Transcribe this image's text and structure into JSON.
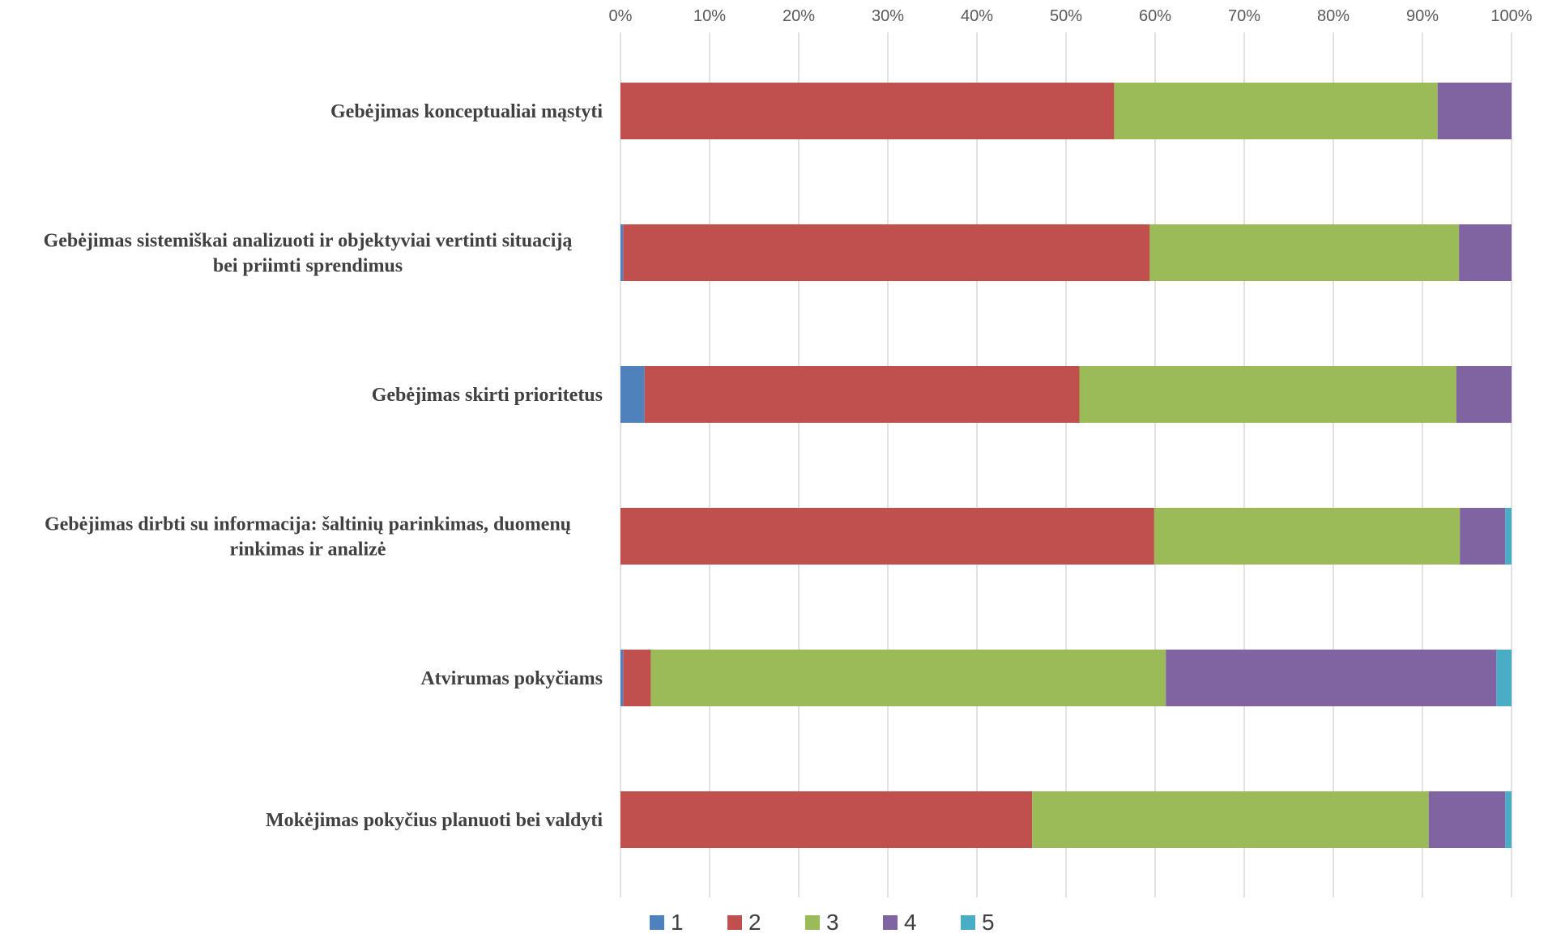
{
  "chart_data": {
    "type": "bar",
    "orientation": "horizontal",
    "stacked": "percent",
    "categories": [
      "Gebėjimas konceptualiai mąstyti",
      "Gebėjimas sistemiškai analizuoti ir objektyviai vertinti situaciją bei priimti sprendimus",
      "Gebėjimas skirti prioritetus",
      "Gebėjimas dirbti su informacija: šaltinių parinkimas, duomenų rinkimas ir analizė",
      "Atvirumas pokyčiams",
      "Mokėjimas pokyčius planuoti bei valdyti"
    ],
    "category_lines": [
      [
        "Gebėjimas konceptualiai mąstyti"
      ],
      [
        "Gebėjimas sistemiškai analizuoti ir objektyviai vertinti situaciją",
        "bei priimti sprendimus"
      ],
      [
        "Gebėjimas skirti prioritetus"
      ],
      [
        "Gebėjimas dirbti su informacija: šaltinių parinkimas, duomenų",
        "rinkimas ir analizė"
      ],
      [
        "Atvirumas pokyčiams"
      ],
      [
        "Mokėjimas pokyčius planuoti bei valdyti"
      ]
    ],
    "series": [
      {
        "name": "1",
        "color": "#4f81bd",
        "values": [
          0,
          0.3,
          2.7,
          0,
          0.3,
          0
        ]
      },
      {
        "name": "2",
        "color": "#c0504d",
        "values": [
          55.4,
          59.1,
          48.8,
          59.9,
          3.1,
          46.2
        ]
      },
      {
        "name": "3",
        "color": "#9bbb59",
        "values": [
          36.3,
          34.7,
          42.3,
          34.3,
          57.8,
          44.5
        ]
      },
      {
        "name": "4",
        "color": "#8064a2",
        "values": [
          8.3,
          5.9,
          6.2,
          5.1,
          37.1,
          8.6
        ]
      },
      {
        "name": "5",
        "color": "#4bacc6",
        "values": [
          0,
          0,
          0,
          0.7,
          1.7,
          0.7
        ]
      }
    ],
    "x_ticks": [
      "0%",
      "10%",
      "20%",
      "30%",
      "40%",
      "50%",
      "60%",
      "70%",
      "80%",
      "90%",
      "100%"
    ],
    "xlim": [
      0,
      100
    ],
    "x_axis_position": "top",
    "grid": true,
    "legend": "bottom"
  }
}
